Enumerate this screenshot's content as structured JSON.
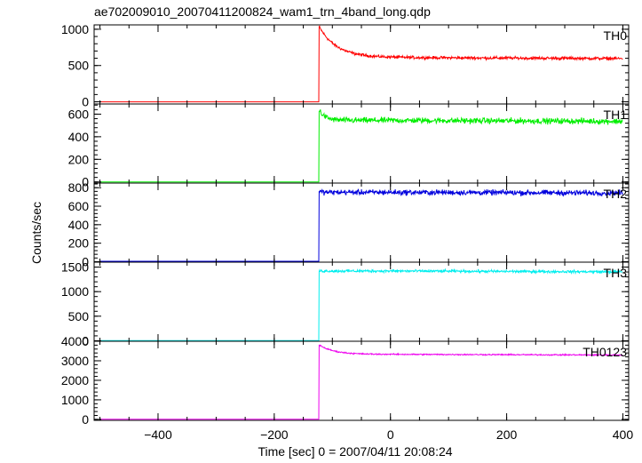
{
  "title": "ae702009010_20070411200824_wam1_trn_4band_long.qdp",
  "xlabel": "Time [sec] 0 = 2007/04/11 20:08:24",
  "ylabel": "Counts/sec",
  "chart_data": {
    "type": "line",
    "x_tick_labels": [
      "−400",
      "−200",
      "0",
      "200",
      "400"
    ],
    "x_ticks": [
      -400,
      -200,
      0,
      200,
      400
    ],
    "xlim": [
      -510,
      410
    ],
    "burst_time": -123,
    "panels": [
      {
        "name": "TH0",
        "color": "#ff0000",
        "ylim": [
          -30,
          1060
        ],
        "y_ticks": [
          0,
          500,
          1000
        ],
        "y_tick_labels": [
          "0",
          "500",
          "1000"
        ],
        "pre_level": 0,
        "peak": 1040,
        "plateau": 610,
        "decay_sec": 30,
        "trend_per_sec": -0.1,
        "noise": 22,
        "x": [
          -510,
          -124,
          -123,
          -115,
          -100,
          -75,
          -50,
          0,
          100,
          200,
          300,
          400
        ],
        "y": [
          0,
          0,
          1040,
          900,
          760,
          670,
          630,
          600,
          600,
          600,
          590,
          560
        ]
      },
      {
        "name": "TH1",
        "color": "#00ee00",
        "ylim": [
          -10,
          690
        ],
        "y_ticks": [
          0,
          200,
          400,
          600
        ],
        "y_tick_labels": [
          "0",
          "200",
          "400",
          "600"
        ],
        "pre_level": 0,
        "peak": 640,
        "plateau": 545,
        "decay_sec": 10,
        "trend_per_sec": -0.06,
        "noise": 28,
        "x": [
          -510,
          -124,
          -123,
          -110,
          -50,
          0,
          100,
          200,
          300,
          400
        ],
        "y": [
          0,
          0,
          640,
          570,
          545,
          540,
          530,
          525,
          520,
          510
        ]
      },
      {
        "name": "TH2",
        "color": "#0000dd",
        "ylim": [
          -5,
          850
        ],
        "y_ticks": [
          0,
          200,
          400,
          600,
          800
        ],
        "y_tick_labels": [
          "0",
          "200",
          "400",
          "600",
          "800"
        ],
        "pre_level": 5,
        "peak": 760,
        "plateau": 750,
        "decay_sec": 5,
        "trend_per_sec": -0.05,
        "noise": 32,
        "x": [
          -510,
          -124,
          -123,
          -100,
          0,
          100,
          200,
          300,
          400
        ],
        "y": [
          5,
          5,
          760,
          755,
          750,
          745,
          740,
          730,
          720
        ]
      },
      {
        "name": "TH3",
        "color": "#00eeee",
        "ylim": [
          -10,
          1600
        ],
        "y_ticks": [
          0,
          500,
          1000,
          1500
        ],
        "y_tick_labels": [
          "0",
          "500",
          "1000",
          "1500"
        ],
        "pre_level": 5,
        "peak": 1420,
        "plateau": 1420,
        "decay_sec": 5,
        "trend_per_sec": -0.12,
        "noise": 30,
        "x": [
          -510,
          -124,
          -123,
          -100,
          0,
          100,
          200,
          300,
          400
        ],
        "y": [
          5,
          5,
          1420,
          1420,
          1410,
          1400,
          1390,
          1380,
          1360
        ]
      },
      {
        "name": "TH0123",
        "color": "#ee00ee",
        "ylim": [
          -50,
          4000
        ],
        "y_ticks": [
          0,
          1000,
          2000,
          3000,
          4000
        ],
        "y_tick_labels": [
          "0",
          "1000",
          "2000",
          "3000",
          "4000"
        ],
        "pre_level": 5,
        "peak": 3820,
        "plateau": 3330,
        "decay_sec": 25,
        "trend_per_sec": -0.25,
        "noise": 35,
        "x": [
          -510,
          -124,
          -123,
          -110,
          -80,
          0,
          100,
          200,
          300,
          400
        ],
        "y": [
          5,
          5,
          3820,
          3550,
          3400,
          3330,
          3300,
          3260,
          3210,
          3150
        ]
      }
    ]
  }
}
